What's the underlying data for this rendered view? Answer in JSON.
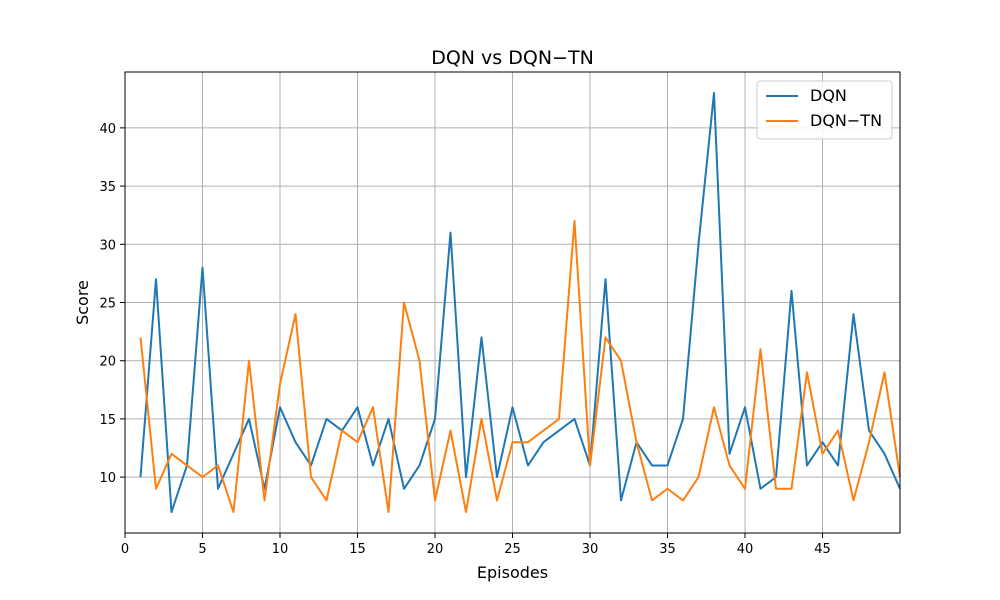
{
  "chart_data": {
    "type": "line",
    "title": "DQN vs DQN−TN",
    "xlabel": "Episodes",
    "ylabel": "Score",
    "xlim": [
      0,
      50
    ],
    "ylim": [
      5.2,
      44.8
    ],
    "xticks": [
      0,
      5,
      10,
      15,
      20,
      25,
      30,
      35,
      40,
      45
    ],
    "yticks": [
      10,
      15,
      20,
      25,
      30,
      35,
      40
    ],
    "grid": true,
    "legend_position": "top-right",
    "x": [
      1,
      2,
      3,
      4,
      5,
      6,
      7,
      8,
      9,
      10,
      11,
      12,
      13,
      14,
      15,
      16,
      17,
      18,
      19,
      20,
      21,
      22,
      23,
      24,
      25,
      26,
      27,
      28,
      29,
      30,
      31,
      32,
      33,
      34,
      35,
      36,
      37,
      38,
      39,
      40,
      41,
      42,
      43,
      44,
      45,
      46,
      47,
      48,
      49,
      50
    ],
    "series": [
      {
        "name": "DQN",
        "color": "#1f77b4",
        "values": [
          10,
          27,
          7,
          11,
          28,
          9,
          12,
          15,
          9,
          16,
          13,
          11,
          15,
          14,
          16,
          11,
          15,
          9,
          11,
          15,
          31,
          10,
          22,
          10,
          16,
          11,
          13,
          14,
          15,
          11,
          27,
          8,
          13,
          11,
          11,
          15,
          30,
          43,
          12,
          16,
          9,
          10,
          26,
          11,
          13,
          11,
          24,
          14,
          12,
          9
        ]
      },
      {
        "name": "DQN−TN",
        "color": "#ff7f0e",
        "values": [
          22,
          9,
          12,
          11,
          10,
          11,
          7,
          20,
          8,
          18,
          24,
          10,
          8,
          14,
          13,
          16,
          7,
          25,
          20,
          8,
          14,
          7,
          15,
          8,
          13,
          13,
          14,
          15,
          32,
          11,
          22,
          20,
          13,
          8,
          9,
          8,
          10,
          16,
          11,
          9,
          21,
          9,
          9,
          19,
          12,
          14,
          8,
          13,
          19,
          10
        ]
      }
    ]
  }
}
